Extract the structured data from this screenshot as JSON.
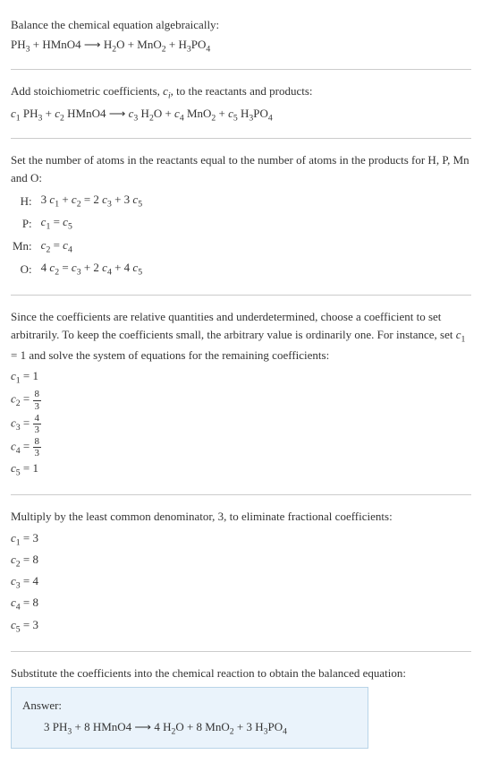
{
  "intro": {
    "line1": "Balance the chemical equation algebraically:",
    "eq_lhs1": "PH",
    "eq_sub1": "3",
    "eq_plus1": " + HMnO4 ",
    "eq_arrow": "⟶",
    "eq_sp": " H",
    "eq_sub2": "2",
    "eq_o": "O + MnO",
    "eq_sub3": "2",
    "eq_plus2": " + H",
    "eq_sub4": "3",
    "eq_po": "PO",
    "eq_sub5": "4"
  },
  "stoich": {
    "text1": "Add stoichiometric coefficients, ",
    "ci": "c",
    "ci_sub": "i",
    "text2": ", to the reactants and products:",
    "c1": "c",
    "c1s": "1",
    "ph": " PH",
    "ph_s": "3",
    "plus1": " + ",
    "c2": "c",
    "c2s": "2",
    "hmno4": " HMnO4 ",
    "arrow": "⟶",
    "sp": " ",
    "c3": "c",
    "c3s": "3",
    "h2o_h": " H",
    "h2o_2": "2",
    "h2o_o": "O",
    "plus2": " + ",
    "c4": "c",
    "c4s": "4",
    "mno": " MnO",
    "mno_2": "2",
    "plus3": " + ",
    "c5": "c",
    "c5s": "5",
    "h3po4_h": " H",
    "h3po4_3": "3",
    "h3po4_po": "PO",
    "h3po4_4": "4"
  },
  "atoms": {
    "text": "Set the number of atoms in the reactants equal to the number of atoms in the products for H, P, Mn and O:",
    "rows": [
      {
        "el": "H:",
        "eq_parts": [
          "3 ",
          "c",
          "1",
          " + ",
          "c",
          "2",
          " = 2 ",
          "c",
          "3",
          " + 3 ",
          "c",
          "5"
        ]
      },
      {
        "el": "P:",
        "eq_parts": [
          "",
          "c",
          "1",
          " = ",
          "c",
          "5",
          "",
          "",
          "",
          "",
          "",
          ""
        ]
      },
      {
        "el": "Mn:",
        "eq_parts": [
          "",
          "c",
          "2",
          " = ",
          "c",
          "4",
          "",
          "",
          "",
          "",
          "",
          ""
        ]
      },
      {
        "el": "O:",
        "eq_parts": [
          "4 ",
          "c",
          "2",
          " = ",
          "c",
          "3",
          " + 2 ",
          "c",
          "4",
          " + 4 ",
          "c",
          "5"
        ]
      }
    ]
  },
  "choose": {
    "text_a": "Since the coefficients are relative quantities and underdetermined, choose a coefficient to set arbitrarily. To keep the coefficients small, the arbitrary value is ordinarily one. For instance, set ",
    "c1": "c",
    "c1s": "1",
    "text_b": " = 1 and solve the system of equations for the remaining coefficients:",
    "coefs": [
      {
        "c": "c",
        "s": "1",
        "eq": " = 1",
        "frac": null
      },
      {
        "c": "c",
        "s": "2",
        "eq": " = ",
        "frac": {
          "n": "8",
          "d": "3"
        }
      },
      {
        "c": "c",
        "s": "3",
        "eq": " = ",
        "frac": {
          "n": "4",
          "d": "3"
        }
      },
      {
        "c": "c",
        "s": "4",
        "eq": " = ",
        "frac": {
          "n": "8",
          "d": "3"
        }
      },
      {
        "c": "c",
        "s": "5",
        "eq": " = 1",
        "frac": null
      }
    ]
  },
  "multiply": {
    "text": "Multiply by the least common denominator, 3, to eliminate fractional coefficients:",
    "coefs": [
      {
        "c": "c",
        "s": "1",
        "v": " = 3"
      },
      {
        "c": "c",
        "s": "2",
        "v": " = 8"
      },
      {
        "c": "c",
        "s": "3",
        "v": " = 4"
      },
      {
        "c": "c",
        "s": "4",
        "v": " = 8"
      },
      {
        "c": "c",
        "s": "5",
        "v": " = 3"
      }
    ]
  },
  "final": {
    "text": "Substitute the coefficients into the chemical reaction to obtain the balanced equation:",
    "answer_label": "Answer:",
    "eq": {
      "p1": "3 PH",
      "s1": "3",
      "p2": " + 8 HMnO4 ",
      "arrow": "⟶",
      "p3": " 4 H",
      "s3": "2",
      "p3b": "O + 8 MnO",
      "s3b": "2",
      "p4": " + 3 H",
      "s4": "3",
      "p4b": "PO",
      "s4b": "4"
    }
  }
}
